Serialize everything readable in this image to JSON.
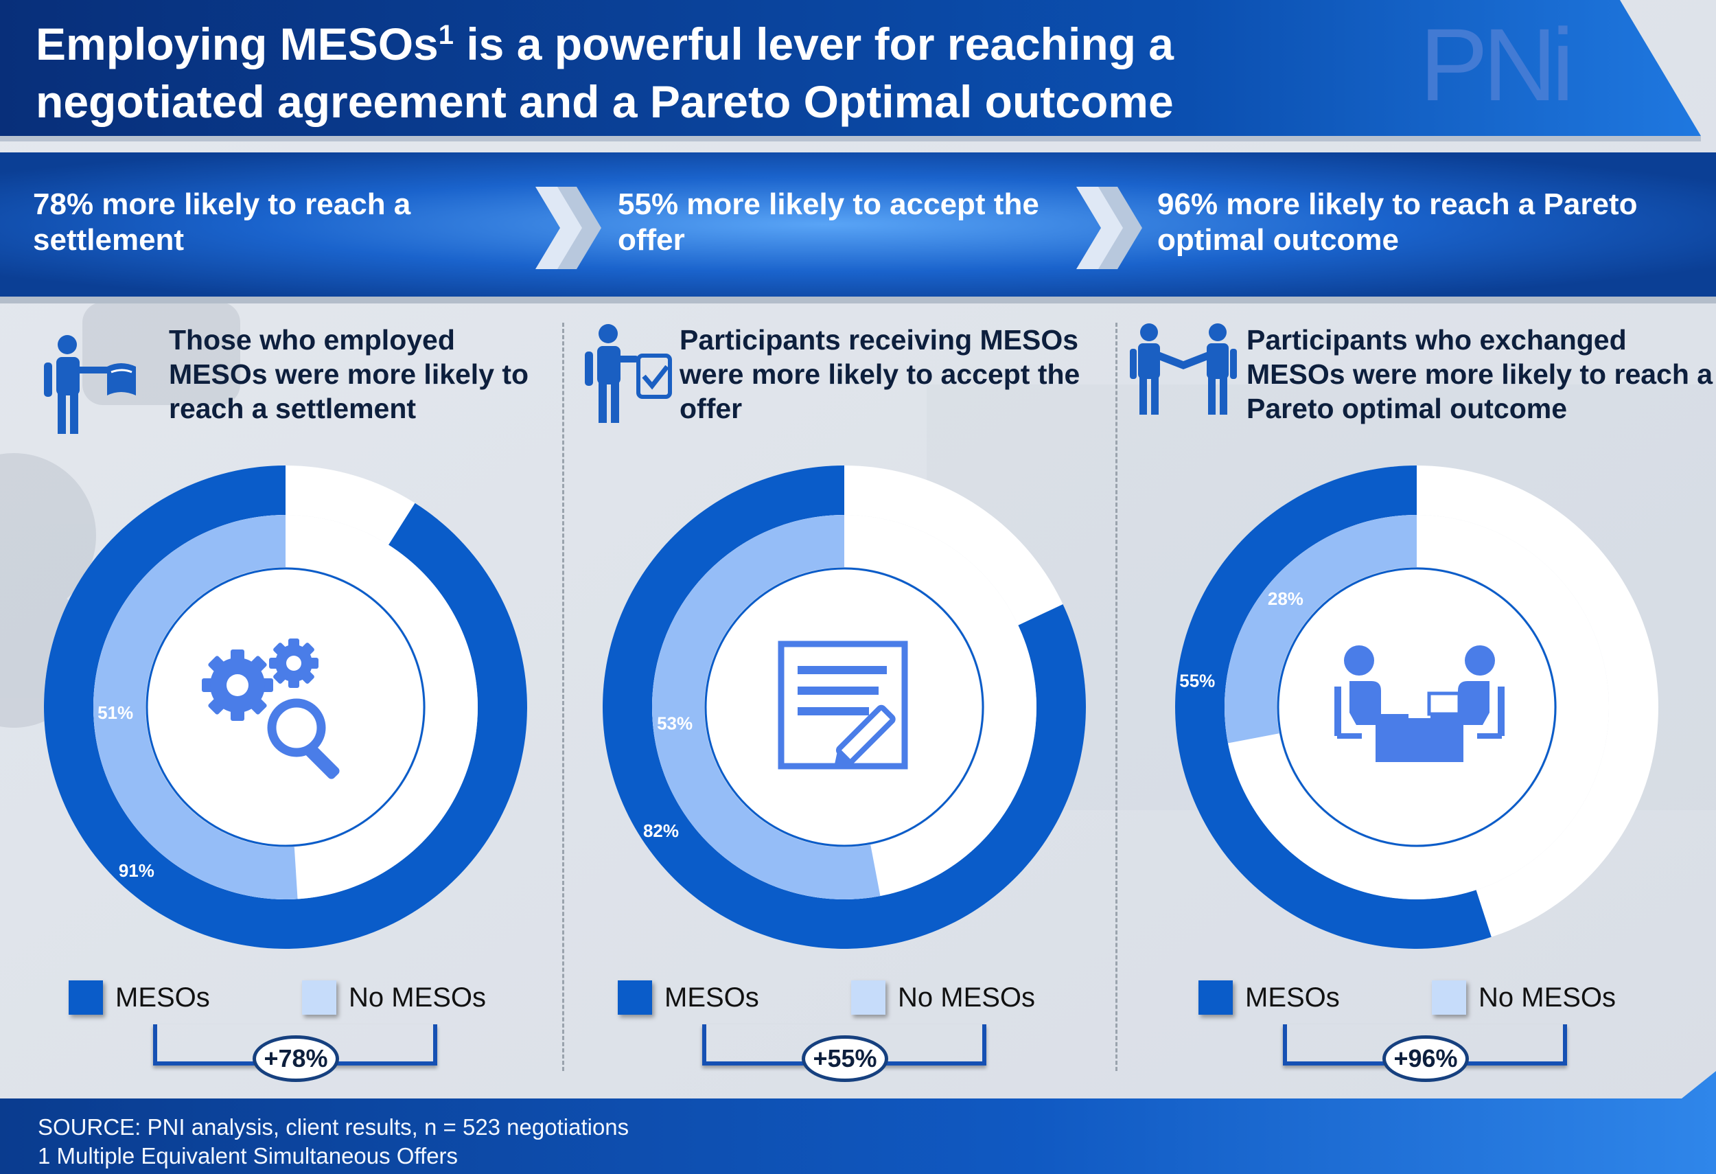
{
  "title": {
    "main": "Employing MESOs",
    "sup": "1",
    "rest": " is a powerful lever for reaching a negotiated agreement and a Pareto Optimal outcome"
  },
  "logo": "PNi",
  "band": [
    {
      "text": "78% more likely to reach a settlement"
    },
    {
      "text": "55% more likely to accept the offer"
    },
    {
      "text": "96% more likely to reach a Pareto optimal outcome"
    }
  ],
  "panels": [
    {
      "heading": "Those who employed MESOs were more likely to reach a settlement",
      "icon": "person-with-flag-icon",
      "center_icon": "gears-search-icon",
      "lift": "+78%"
    },
    {
      "heading": "Participants receiving MESOs were more likely to accept the offer",
      "icon": "person-with-checklist-icon",
      "center_icon": "document-pencil-icon",
      "lift": "+55%"
    },
    {
      "heading": "Participants who exchanged MESOs were more likely to reach a Pareto optimal outcome",
      "icon": "handshake-icon",
      "center_icon": "meeting-table-icon",
      "lift": "+96%"
    }
  ],
  "legend": {
    "meso": "MESOs",
    "no_meso": "No MESOs"
  },
  "chart_data": [
    {
      "type": "pie",
      "series": [
        {
          "name": "MESOs",
          "values": [
            91
          ],
          "labels": [
            "91%"
          ]
        },
        {
          "name": "No MESOs",
          "values": [
            51
          ],
          "labels": [
            "51%"
          ]
        }
      ]
    },
    {
      "type": "pie",
      "series": [
        {
          "name": "MESOs",
          "values": [
            82
          ],
          "labels": [
            "82%"
          ]
        },
        {
          "name": "No MESOs",
          "values": [
            53
          ],
          "labels": [
            "53%"
          ]
        }
      ]
    },
    {
      "type": "pie",
      "series": [
        {
          "name": "MESOs",
          "values": [
            55
          ],
          "labels": [
            "55%"
          ]
        },
        {
          "name": "No MESOs",
          "values": [
            28
          ],
          "labels": [
            "28%"
          ]
        }
      ]
    }
  ],
  "colors": {
    "meso": "#0a5cc9",
    "no_meso": "#95bdf7",
    "remainder": "#ffffff",
    "icon": "#4a7de8",
    "banner": "#0b4fa8"
  },
  "footer": {
    "source": "SOURCE: PNI analysis, client results, n = 523 negotiations",
    "note": "1 Multiple Equivalent Simultaneous Offers"
  }
}
